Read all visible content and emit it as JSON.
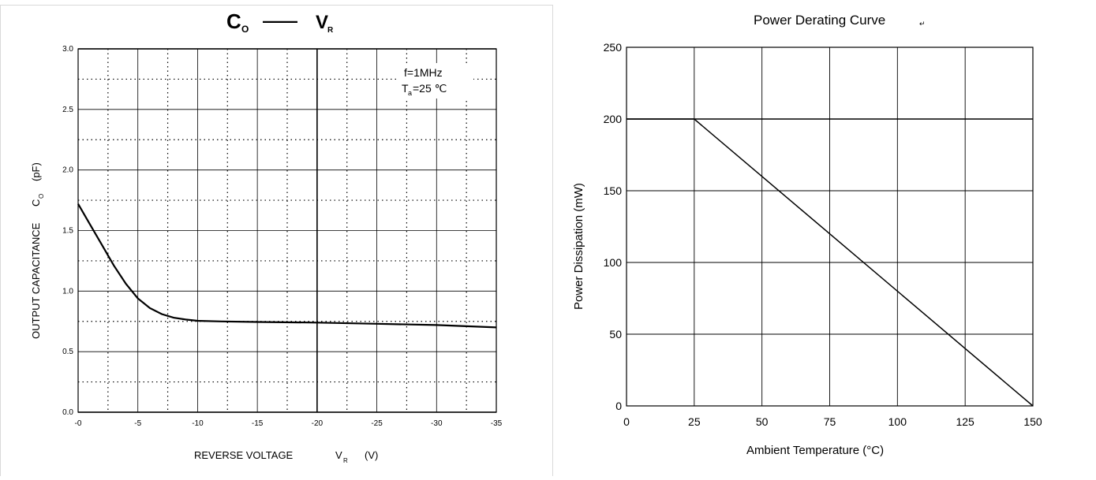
{
  "chart_data": [
    {
      "type": "line",
      "title": "C",
      "title_sub": "O",
      "title_dash": "——",
      "title_var": "V",
      "title_var_sub": "R",
      "xlabel": "REVERSE VOLTAGE",
      "xlabel_var": "V",
      "xlabel_var_sub": "R",
      "xlabel_unit": "(V)",
      "ylabel": "OUTPUT CAPACITANCE",
      "ylabel_var": "C",
      "ylabel_var_sub": "O",
      "ylabel_unit": "(pF)",
      "xlim": [
        0,
        -35
      ],
      "ylim": [
        0.0,
        3.0
      ],
      "x_ticks": [
        "-0",
        "-5",
        "-10",
        "-15",
        "-20",
        "-25",
        "-30",
        "-35"
      ],
      "y_ticks": [
        "0.0",
        "0.5",
        "1.0",
        "1.5",
        "2.0",
        "2.5",
        "3.0"
      ],
      "grid": true,
      "annotation_line1": "f=1MHz",
      "annotation_line2_var": "T",
      "annotation_line2_sub": "a",
      "annotation_line2_val": "=25 ℃",
      "series": [
        {
          "x": [
            0,
            -1,
            -2,
            -3,
            -4,
            -5,
            -6,
            -7,
            -8,
            -9,
            -10,
            -12,
            -15,
            -20,
            -25,
            -30,
            -35
          ],
          "y": [
            1.72,
            1.55,
            1.38,
            1.21,
            1.06,
            0.94,
            0.86,
            0.81,
            0.78,
            0.765,
            0.755,
            0.75,
            0.745,
            0.74,
            0.73,
            0.72,
            0.7
          ]
        }
      ],
      "colors": {
        "line": "#000000",
        "grid": "#000000"
      }
    },
    {
      "type": "line",
      "title": "Power  Derating Curve",
      "title_mark": "↵",
      "xlabel": "Ambient Temperature (°C)",
      "ylabel": "Power Dissipation  (mW)",
      "xlim": [
        0,
        150
      ],
      "ylim": [
        0,
        250
      ],
      "x_ticks": [
        "0",
        "25",
        "50",
        "75",
        "100",
        "125",
        "150"
      ],
      "y_ticks": [
        "0",
        "50",
        "100",
        "150",
        "200",
        "250"
      ],
      "grid": true,
      "series": [
        {
          "x": [
            0,
            25,
            150
          ],
          "y": [
            200,
            200,
            0
          ]
        }
      ],
      "colors": {
        "line": "#000000",
        "grid": "#000000"
      }
    }
  ]
}
